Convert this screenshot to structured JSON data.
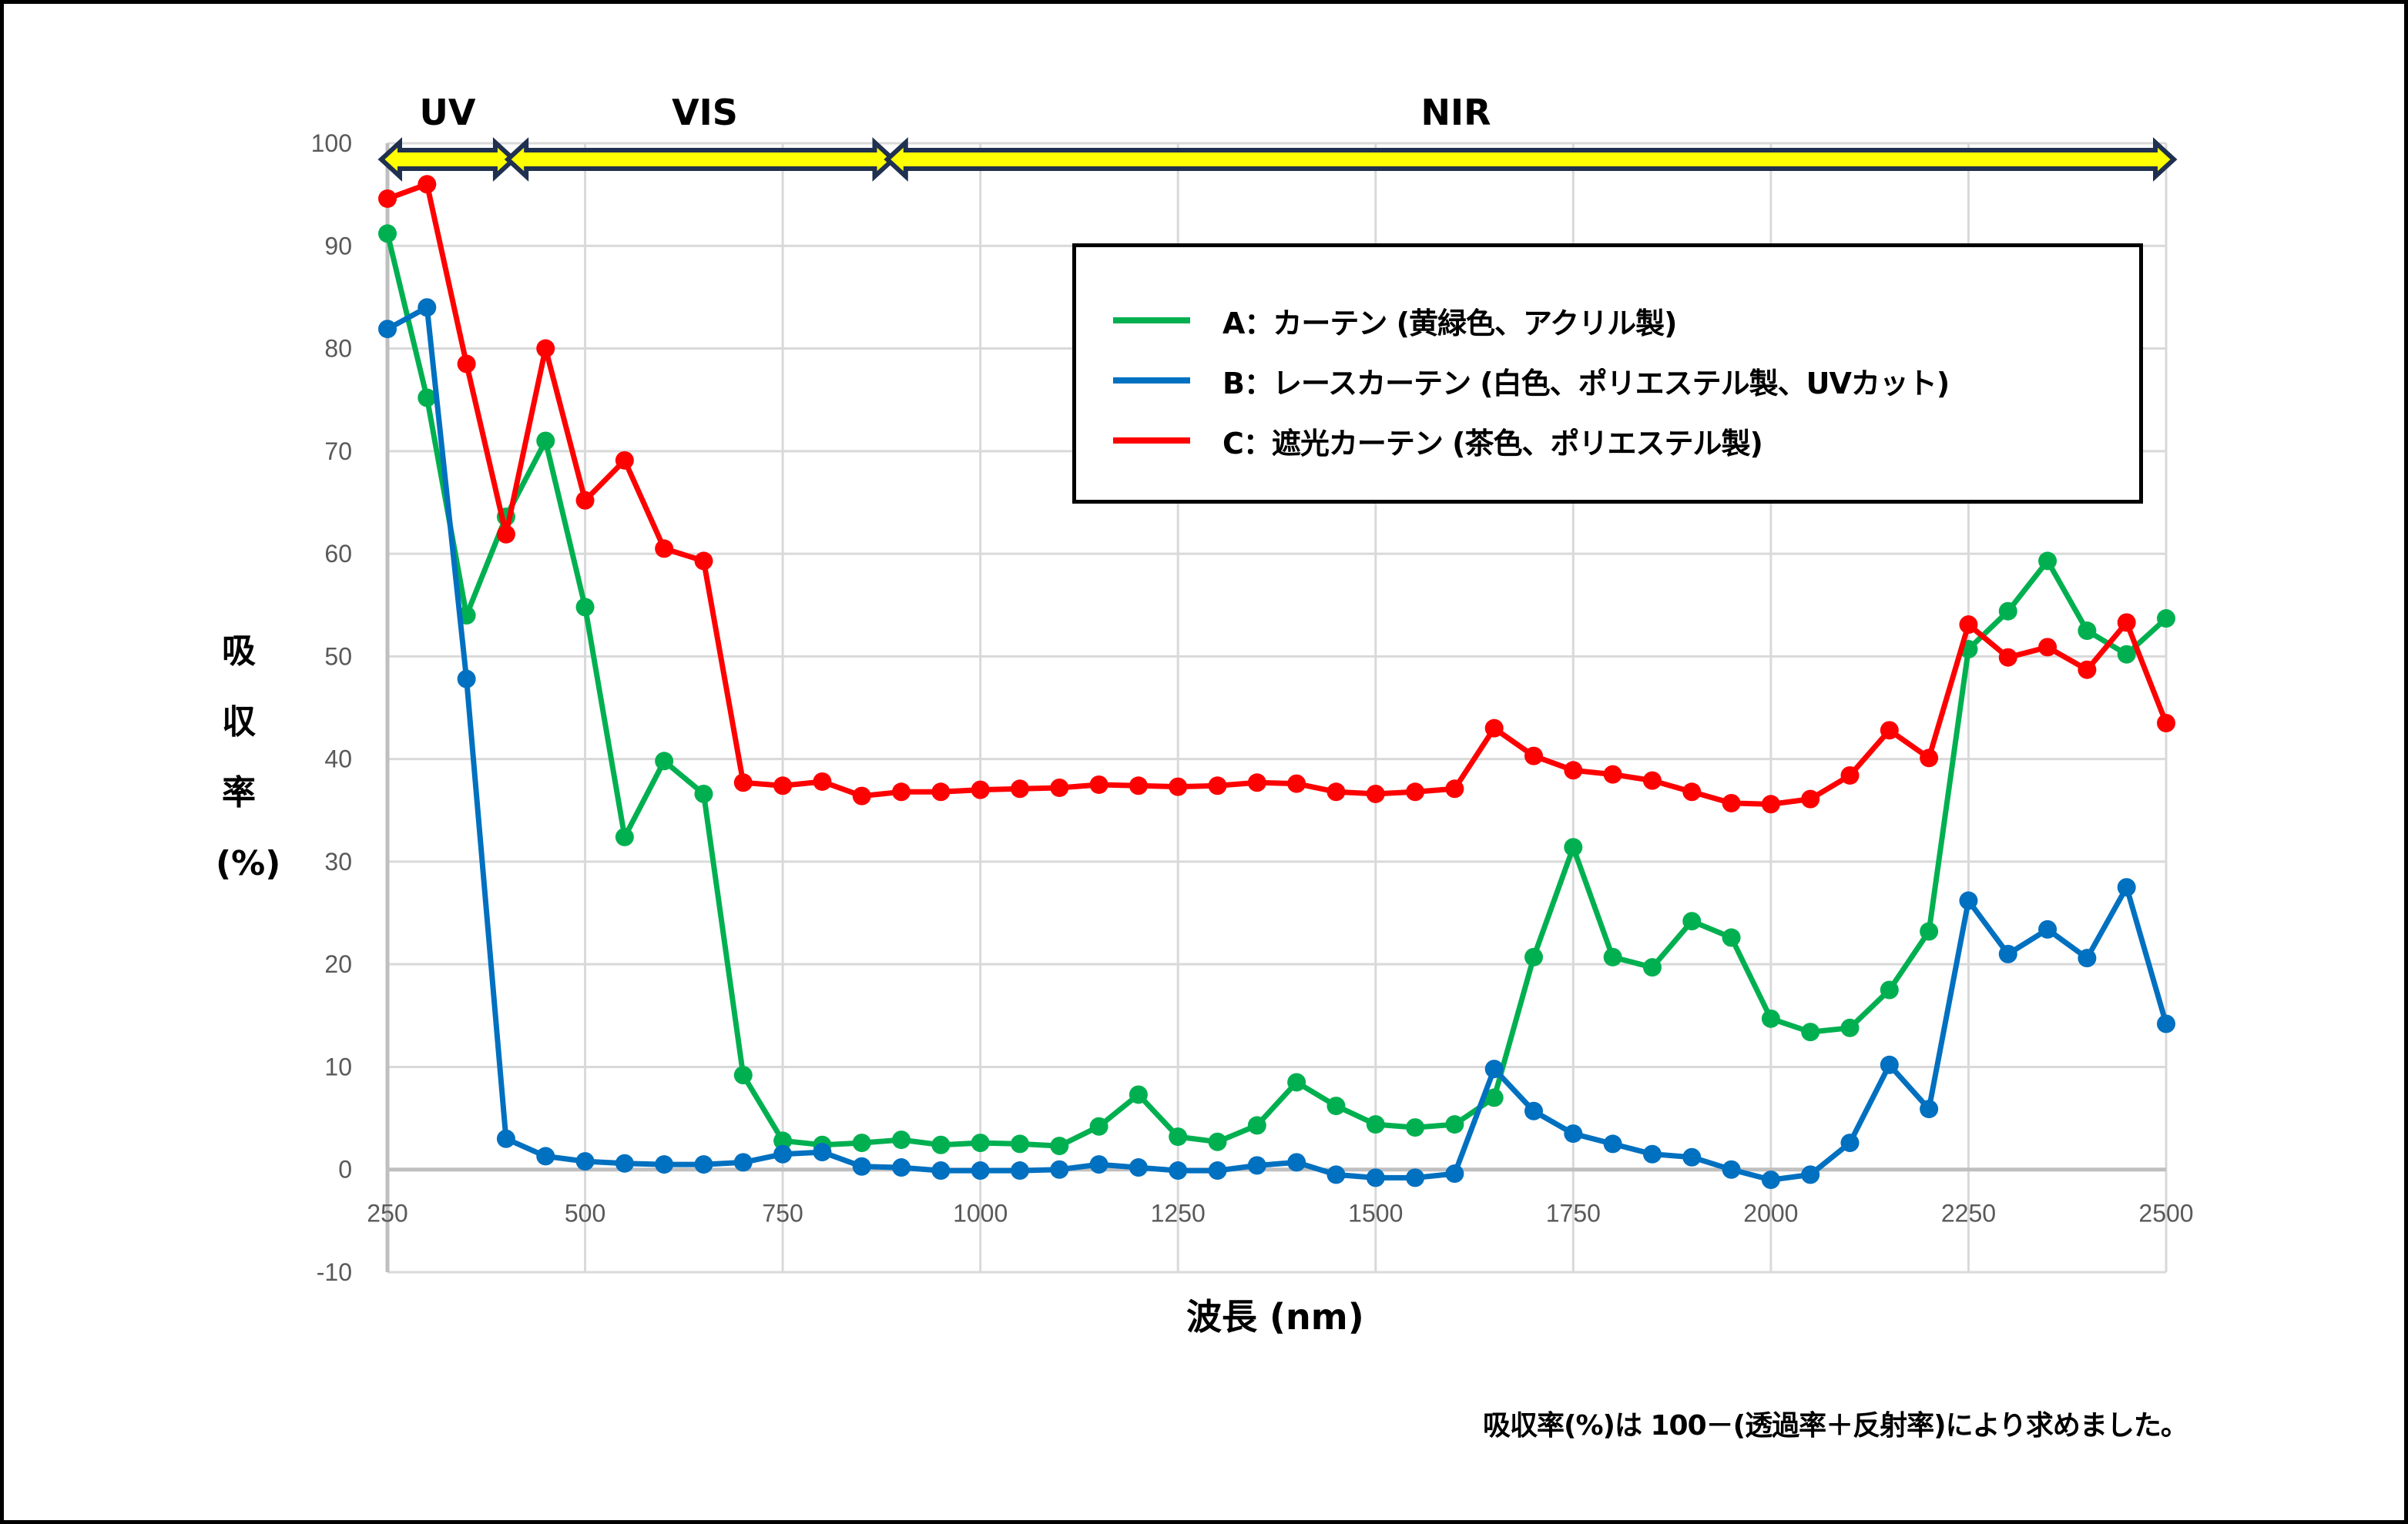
{
  "chart_data": {
    "type": "line",
    "title": "",
    "xlabel": "波長 (nm)",
    "ylabel": "吸収率 (%)",
    "ylabel_lines": [
      "吸",
      "収",
      "率",
      "(%)"
    ],
    "xlim": [
      250,
      2500
    ],
    "ylim": [
      -10,
      100
    ],
    "x_ticks": [
      250,
      500,
      750,
      1000,
      1250,
      1500,
      1750,
      2000,
      2250,
      2500
    ],
    "y_ticks": [
      -10,
      0,
      10,
      20,
      30,
      40,
      50,
      60,
      70,
      80,
      90,
      100
    ],
    "grid": true,
    "legend_position": "upper right (inside plot)",
    "x": [
      250,
      300,
      350,
      400,
      450,
      500,
      550,
      600,
      650,
      700,
      750,
      800,
      850,
      900,
      950,
      1000,
      1050,
      1100,
      1150,
      1200,
      1250,
      1300,
      1350,
      1400,
      1450,
      1500,
      1550,
      1600,
      1650,
      1700,
      1750,
      1800,
      1850,
      1900,
      1950,
      2000,
      2050,
      2100,
      2150,
      2200,
      2250,
      2300,
      2350,
      2400,
      2450,
      2500
    ],
    "series": [
      {
        "name": "A：カーテン (黄緑色、アクリル製)",
        "color": "#00b050",
        "values": [
          91.2,
          75.2,
          54.0,
          63.6,
          71.0,
          54.8,
          32.4,
          39.8,
          36.6,
          9.2,
          2.8,
          2.4,
          2.6,
          2.9,
          2.4,
          2.6,
          2.5,
          2.3,
          4.2,
          7.3,
          3.2,
          2.7,
          4.3,
          8.5,
          6.2,
          4.4,
          4.1,
          4.4,
          7.0,
          20.7,
          31.4,
          20.7,
          19.7,
          24.2,
          22.6,
          14.7,
          13.4,
          13.8,
          17.5,
          23.2,
          50.7,
          54.4,
          59.3,
          52.5,
          50.2,
          53.7
        ]
      },
      {
        "name": "B：レースカーテン (白色、ポリエステル製、UVカット)",
        "color": "#0070c0",
        "values": [
          81.9,
          84.0,
          47.8,
          3.0,
          1.3,
          0.8,
          0.6,
          0.5,
          0.5,
          0.7,
          1.5,
          1.7,
          0.3,
          0.2,
          -0.1,
          -0.1,
          -0.1,
          0.0,
          0.5,
          0.2,
          -0.1,
          -0.1,
          0.4,
          0.7,
          -0.5,
          -0.8,
          -0.8,
          -0.4,
          9.8,
          5.7,
          3.5,
          2.5,
          1.5,
          1.2,
          0.0,
          -1.0,
          -0.5,
          2.6,
          10.2,
          5.9,
          26.2,
          21.0,
          23.4,
          20.6,
          27.5,
          14.2
        ]
      },
      {
        "name": "C：遮光カーテン (茶色、ポリエステル製)",
        "color": "#ff0000",
        "values": [
          94.6,
          96.0,
          78.5,
          61.9,
          80.0,
          65.2,
          69.1,
          60.5,
          59.3,
          37.7,
          37.4,
          37.8,
          36.4,
          36.8,
          36.8,
          37.0,
          37.1,
          37.2,
          37.5,
          37.4,
          37.3,
          37.4,
          37.7,
          37.6,
          36.8,
          36.6,
          36.8,
          37.1,
          43.0,
          40.3,
          38.9,
          38.5,
          37.9,
          36.8,
          35.7,
          35.6,
          36.1,
          38.4,
          42.8,
          40.1,
          53.1,
          49.9,
          50.9,
          48.7,
          53.3,
          43.5
        ]
      }
    ],
    "annotations": [
      {
        "label": "UV",
        "from": 250,
        "to": 400
      },
      {
        "label": "VIS",
        "from": 410,
        "to": 880
      },
      {
        "label": "NIR",
        "from": 890,
        "to": 2500
      }
    ]
  },
  "legend": {
    "items": [
      {
        "label": "A：カーテン (黄緑色、アクリル製)",
        "color": "#00b050"
      },
      {
        "label": "B：レースカーテン (白色、ポリエステル製、UVカット)",
        "color": "#0070c0"
      },
      {
        "label": "C：遮光カーテン (茶色、ポリエステル製)",
        "color": "#ff0000"
      }
    ]
  },
  "axes": {
    "xlabel": "波長 (nm)",
    "ylabel_lines": [
      "吸",
      "収",
      "率",
      "(%)"
    ]
  },
  "regions": {
    "uv": "UV",
    "vis": "VIS",
    "nir": "NIR"
  },
  "footnote": "吸収率(%)は 100－(透過率＋反射率)により求めました。",
  "colors": {
    "arrow_fill": "#ffff00",
    "arrow_stroke": "#1f3050",
    "grid": "#d9d9d9",
    "axis": "#bfbfbf"
  }
}
